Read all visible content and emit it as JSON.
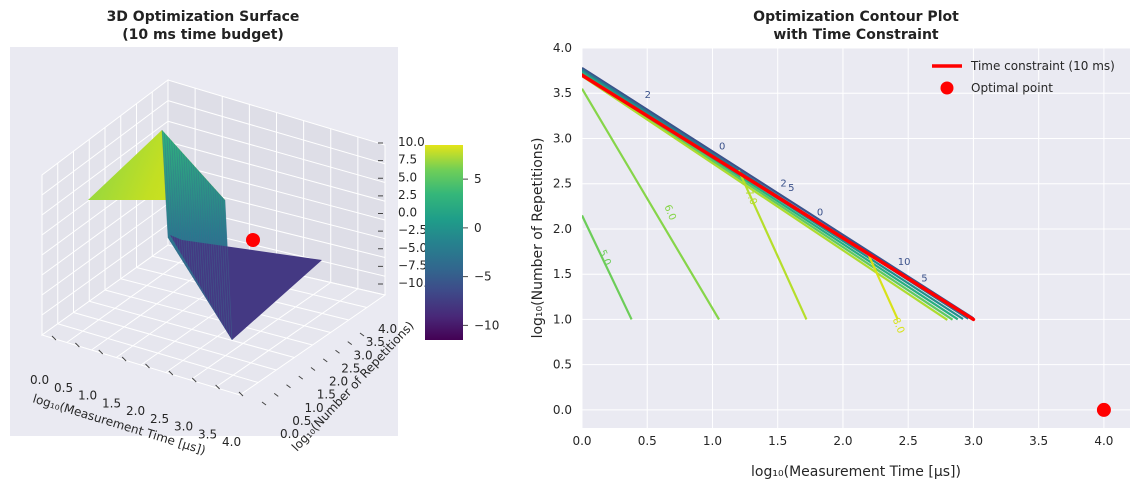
{
  "chart_data": [
    {
      "type": "surface3d",
      "title_lines": [
        "3D Optimization Surface",
        "(10 ms time budget)"
      ],
      "xlabel": "log₁₀(Measurement Time [μs])",
      "ylabel": "log₁₀(Number of Repetitions)",
      "x_ticks": [
        "0.0",
        "0.5",
        "1.0",
        "1.5",
        "2.0",
        "2.5",
        "3.0",
        "3.5",
        "4.0"
      ],
      "y_ticks": [
        "0.0",
        "0.5",
        "1.0",
        "1.5",
        "2.0",
        "2.5",
        "3.0",
        "3.5",
        "4.0"
      ],
      "z_ticks": [
        "−10.0",
        "−7.5",
        "−5.0",
        "−2.5",
        "0.0",
        "2.5",
        "5.0",
        "7.5",
        "10.0"
      ],
      "xlim": [
        0,
        4
      ],
      "ylim": [
        0,
        4
      ],
      "zlim": [
        -10,
        10
      ],
      "colormap": "viridis",
      "colorbar": {
        "ticks": [
          "−10",
          "−5",
          "0",
          "5"
        ],
        "range": [
          -11.5,
          8.5
        ]
      },
      "optimal_point": {
        "x": 4.0,
        "y": 0.0,
        "z": 2.5,
        "color": "#ff0000"
      },
      "grid": true
    },
    {
      "type": "contour",
      "title_lines": [
        "Optimization Contour Plot",
        "with Time Constraint"
      ],
      "xlabel": "log₁₀(Measurement Time [μs])",
      "ylabel": "log₁₀(Number of Repetitions)",
      "x_ticks": [
        "0.0",
        "0.5",
        "1.0",
        "1.5",
        "2.0",
        "2.5",
        "3.0",
        "3.5",
        "4.0"
      ],
      "y_ticks": [
        "0.0",
        "0.5",
        "1.0",
        "1.5",
        "2.0",
        "2.5",
        "3.0",
        "3.5",
        "4.0"
      ],
      "xlim": [
        0,
        4.2
      ],
      "ylim": [
        -0.2,
        4.0
      ],
      "grid": true,
      "legend": {
        "position": "top-right",
        "entries": [
          {
            "label": "Time constraint (10 ms)",
            "kind": "line",
            "color": "#ff0000"
          },
          {
            "label": "Optimal point",
            "kind": "point",
            "color": "#ff0000"
          }
        ]
      },
      "time_constraint": {
        "x": [
          0.0,
          3.0
        ],
        "y": [
          3.7,
          1.0
        ],
        "color": "#ff0000"
      },
      "optimal_point": {
        "x": 4.0,
        "y": 0.0,
        "color": "#ff0000"
      },
      "contours": [
        {
          "level": "5.0",
          "color": "#6ccd59",
          "x": [
            0.0,
            0.38
          ],
          "y": [
            2.15,
            1.0
          ],
          "label_at": [
            0.13,
            1.75
          ],
          "rot": 67
        },
        {
          "level": "6.0",
          "color": "#86d549",
          "x": [
            0.0,
            1.05
          ],
          "y": [
            3.55,
            1.0
          ],
          "label_at": [
            0.63,
            2.25
          ],
          "rot": 67
        },
        {
          "level": "7.0",
          "color": "#b5de2b",
          "x": [
            1.2,
            1.72
          ],
          "y": [
            2.65,
            1.0
          ],
          "label_at": [
            1.25,
            2.42
          ],
          "rot": 67
        },
        {
          "level": "8.0",
          "color": "#d8e219",
          "x": [
            2.2,
            2.42
          ],
          "y": [
            1.7,
            1.0
          ],
          "label_at": [
            2.38,
            1.0
          ],
          "rot": 67
        }
      ],
      "boundary_labels": [
        {
          "text": "2",
          "x": 0.48,
          "y": 3.45
        },
        {
          "text": "0",
          "x": 1.05,
          "y": 2.88
        },
        {
          "text": "2",
          "x": 1.52,
          "y": 2.47
        },
        {
          "text": "5",
          "x": 1.58,
          "y": 2.42
        },
        {
          "text": "0",
          "x": 1.8,
          "y": 2.15
        },
        {
          "text": "10",
          "x": 2.42,
          "y": 1.6
        },
        {
          "text": "5",
          "x": 2.6,
          "y": 1.42
        }
      ]
    }
  ]
}
